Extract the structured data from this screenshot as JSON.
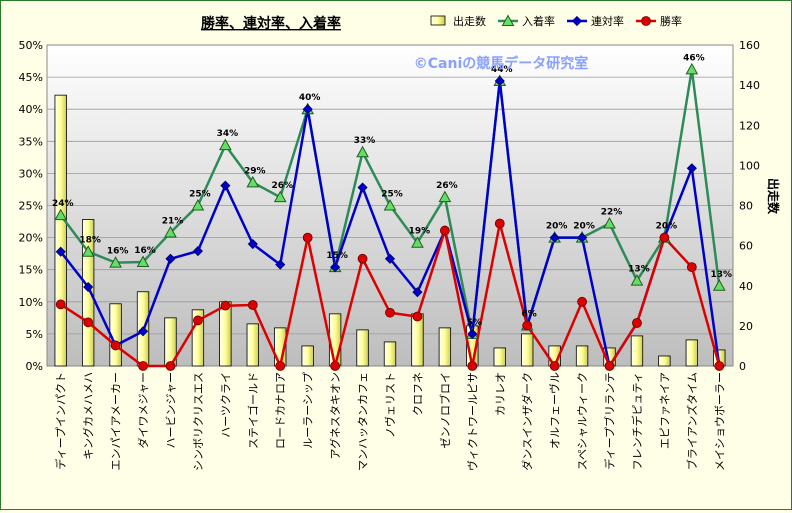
{
  "chart_data": {
    "type": "bar",
    "title": "勝率、連対率、入着率",
    "watermark": "©Caniの競馬データ研究室",
    "y2label": "出走数",
    "ylim": [
      0,
      50
    ],
    "y2lim": [
      0,
      160
    ],
    "yticks": [
      "0%",
      "5%",
      "10%",
      "15%",
      "20%",
      "25%",
      "30%",
      "35%",
      "40%",
      "45%",
      "50%"
    ],
    "y2ticks": [
      "0",
      "20",
      "40",
      "60",
      "80",
      "100",
      "120",
      "140",
      "160"
    ],
    "legend_position": "top-right",
    "grid": true,
    "categories": [
      "ディープインパクト",
      "キングカメハメハ",
      "エンパイアメーカー",
      "ダイワメジャー",
      "ハービンジャー",
      "シンボリクリスエス",
      "ハーツクライ",
      "ステイゴールド",
      "ロードカナロア",
      "ルーラーシップ",
      "アグネスタキオン",
      "マンハッタンカフェ",
      "ノヴェリスト",
      "クロフネ",
      "ゼンノロブロイ",
      "ヴィクトワールピサ",
      "カリレオ",
      "ダンスインザダーク",
      "オルフェーヴル",
      "スペシャルウィーク",
      "ディープブリランテ",
      "フレンチデピュティ",
      "エピファネイア",
      "ブライアンズタイム",
      "メイショウボーラー"
    ],
    "series": [
      {
        "name": "出走数",
        "type": "bar",
        "axis": "right",
        "color": "#ffff99",
        "values": [
          135,
          73,
          31,
          37,
          24,
          28,
          32,
          21,
          19,
          10,
          26,
          18,
          12,
          26,
          19,
          20,
          9,
          16,
          10,
          10,
          9,
          15,
          5,
          13,
          8
        ]
      },
      {
        "name": "入着率",
        "type": "line",
        "axis": "left",
        "color": "#2e8b57",
        "marker": "triangle",
        "values": [
          23.5,
          17.8,
          16.1,
          16.2,
          20.8,
          25.0,
          34.4,
          28.6,
          26.3,
          40.0,
          15.4,
          33.3,
          25.0,
          19.2,
          26.3,
          5.0,
          44.4,
          6.3,
          20.0,
          20.0,
          22.2,
          13.3,
          20.0,
          46.2,
          12.5
        ]
      },
      {
        "name": "連対率",
        "type": "line",
        "axis": "left",
        "color": "#0000cc",
        "marker": "diamond",
        "values": [
          17.8,
          12.3,
          3.2,
          5.4,
          16.7,
          17.9,
          28.1,
          19.0,
          15.8,
          40.0,
          15.4,
          27.8,
          16.7,
          11.5,
          21.1,
          5.0,
          44.4,
          6.3,
          20.0,
          20.0,
          0.0,
          6.7,
          20.0,
          30.8,
          0.0
        ]
      },
      {
        "name": "勝率",
        "type": "line",
        "axis": "left",
        "color": "#dd0000",
        "marker": "circle",
        "values": [
          9.6,
          6.8,
          3.2,
          0.0,
          0.0,
          7.1,
          9.4,
          9.5,
          0.0,
          20.0,
          0.0,
          16.7,
          8.3,
          7.7,
          21.1,
          0.0,
          22.2,
          6.3,
          0.0,
          10.0,
          0.0,
          6.7,
          20.0,
          15.4,
          0.0
        ]
      }
    ],
    "data_labels": {
      "series": "入着率",
      "values": [
        "24%",
        "18%",
        "16%",
        "16%",
        "21%",
        "25%",
        "34%",
        "29%",
        "26%",
        "40%",
        "15%",
        "33%",
        "25%",
        "19%",
        "26%",
        "5%",
        "44%",
        "6%",
        "20%",
        "20%",
        "22%",
        "13%",
        "20%",
        "46%",
        "13%"
      ]
    }
  }
}
